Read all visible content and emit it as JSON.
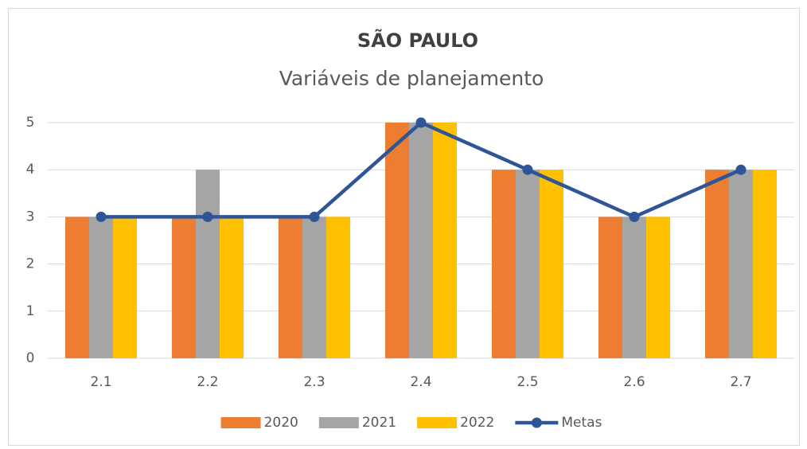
{
  "chart_data": {
    "type": "bar",
    "title": "SÃO PAULO",
    "subtitle": "Variáveis de planejamento",
    "categories": [
      "2.1",
      "2.2",
      "2.3",
      "2.4",
      "2.5",
      "2.6",
      "2.7"
    ],
    "series": [
      {
        "name": "2020",
        "color": "#ed7d31",
        "values": [
          3,
          3,
          3,
          5,
          4,
          3,
          4
        ]
      },
      {
        "name": "2021",
        "color": "#a5a5a5",
        "values": [
          3,
          4,
          3,
          5,
          4,
          3,
          4
        ]
      },
      {
        "name": "2022",
        "color": "#ffc000",
        "values": [
          3,
          3,
          3,
          5,
          4,
          3,
          4
        ]
      },
      {
        "name": "Metas",
        "color": "#2f5597",
        "type": "line",
        "values": [
          3,
          3,
          3,
          5,
          4,
          3,
          4
        ]
      }
    ],
    "ylim": [
      0,
      5
    ],
    "yticks": [
      0,
      1,
      2,
      3,
      4,
      5
    ],
    "grid": true,
    "legend": "bottom"
  }
}
